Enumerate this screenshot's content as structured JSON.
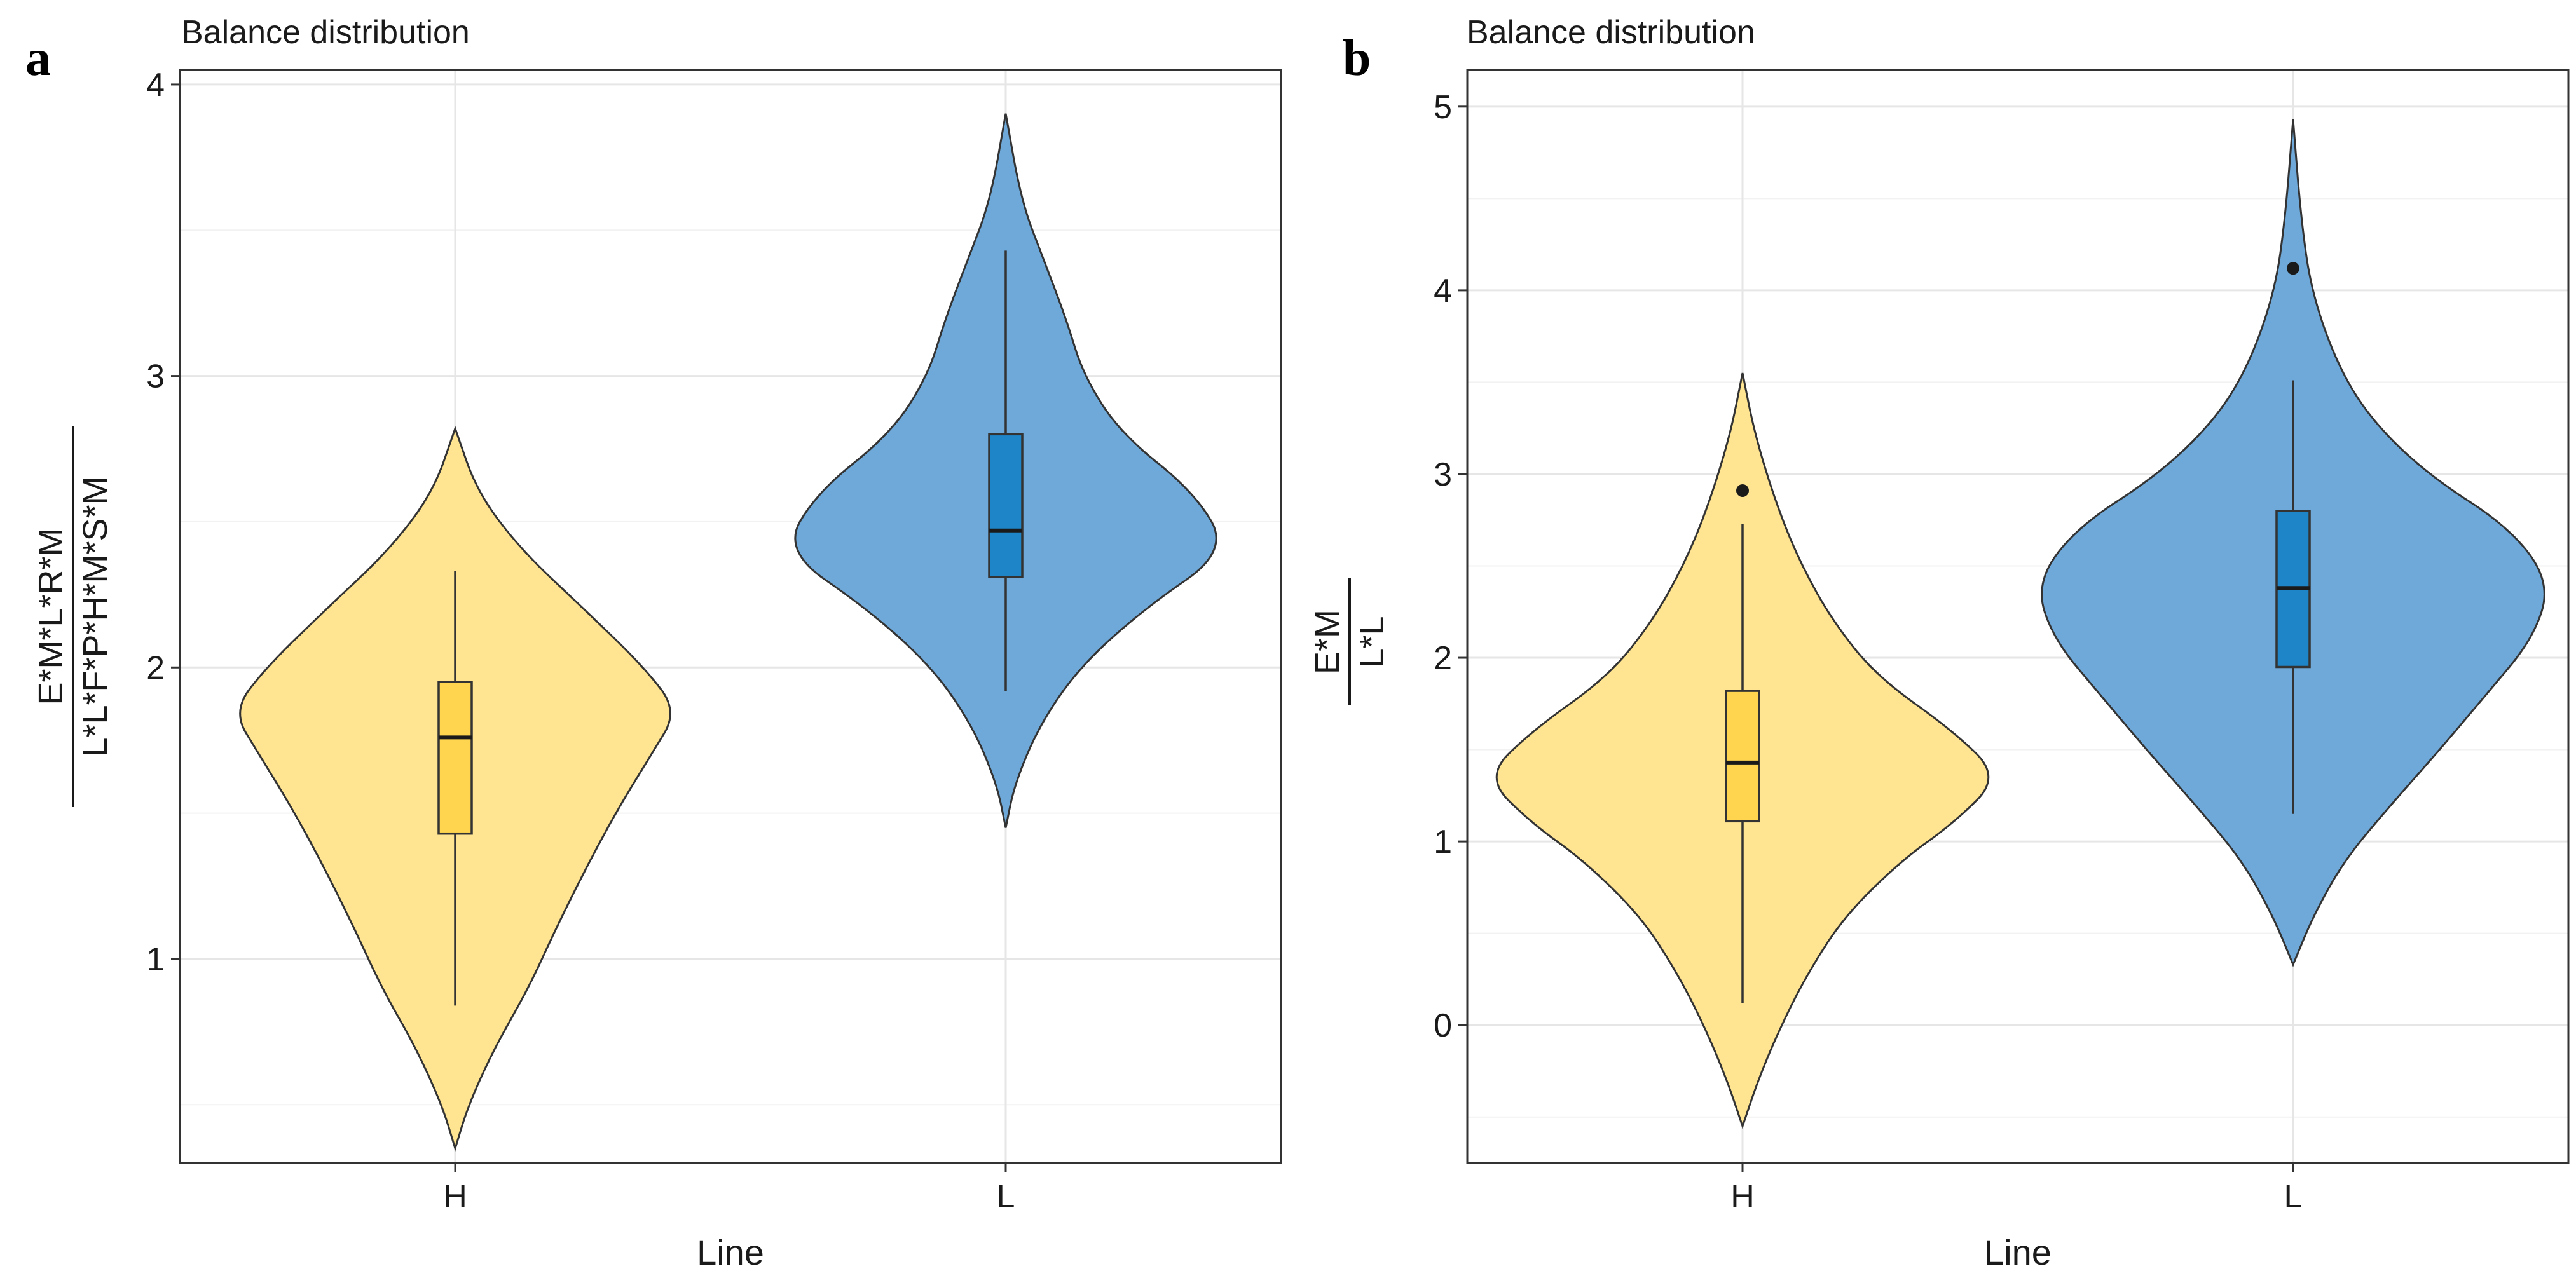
{
  "chart_data": [
    {
      "panel_label": "a",
      "type": "violin",
      "title": "Balance distribution",
      "xlabel": "Line",
      "ylabel": {
        "numerator": "E*M*L*R*M",
        "denominator": "L*L*F*P*H*M*S*M"
      },
      "categories": [
        "H",
        "L"
      ],
      "ylim": [
        0.3,
        4.05
      ],
      "yticks": [
        1,
        2,
        3,
        4
      ],
      "ytick_labels": [
        "1",
        "2",
        "3",
        "4"
      ],
      "grid": true,
      "colors": {
        "H": "#ffe491",
        "L": "#6fa9d9",
        "H_box": "#ffd54f",
        "L_box": "#1e85c8"
      },
      "series": [
        {
          "name": "H",
          "violin_profile": [
            [
              0.35,
              0.0
            ],
            [
              0.5,
              0.06
            ],
            [
              0.7,
              0.18
            ],
            [
              0.9,
              0.33
            ],
            [
              1.1,
              0.45
            ],
            [
              1.3,
              0.58
            ],
            [
              1.5,
              0.72
            ],
            [
              1.7,
              0.88
            ],
            [
              1.85,
              1.0
            ],
            [
              2.0,
              0.85
            ],
            [
              2.2,
              0.58
            ],
            [
              2.4,
              0.3
            ],
            [
              2.6,
              0.1
            ],
            [
              2.82,
              0.0
            ]
          ],
          "box": {
            "q1": 1.43,
            "median": 1.76,
            "q3": 1.95,
            "whisker_low": 0.84,
            "whisker_high": 2.33
          },
          "outliers": []
        },
        {
          "name": "L",
          "violin_profile": [
            [
              1.45,
              0.0
            ],
            [
              1.6,
              0.04
            ],
            [
              1.8,
              0.15
            ],
            [
              2.0,
              0.33
            ],
            [
              2.2,
              0.62
            ],
            [
              2.4,
              1.0
            ],
            [
              2.6,
              0.85
            ],
            [
              2.8,
              0.52
            ],
            [
              3.0,
              0.35
            ],
            [
              3.2,
              0.27
            ],
            [
              3.4,
              0.17
            ],
            [
              3.6,
              0.07
            ],
            [
              3.9,
              0.0
            ]
          ],
          "box": {
            "q1": 2.31,
            "median": 2.47,
            "q3": 2.8,
            "whisker_low": 1.92,
            "whisker_high": 3.43
          },
          "outliers": []
        }
      ]
    },
    {
      "panel_label": "b",
      "type": "violin",
      "title": "Balance distribution",
      "xlabel": "Line",
      "ylabel": {
        "numerator": "E*M",
        "denominator": "L*L"
      },
      "categories": [
        "H",
        "L"
      ],
      "ylim": [
        -0.75,
        5.2
      ],
      "yticks": [
        0,
        1,
        2,
        3,
        4,
        5
      ],
      "ytick_labels": [
        "0",
        "1",
        "2",
        "3",
        "4",
        "5"
      ],
      "grid": true,
      "colors": {
        "H": "#ffe491",
        "L": "#6fa9d9",
        "H_box": "#ffd54f",
        "L_box": "#1e85c8"
      },
      "series": [
        {
          "name": "H",
          "violin_profile": [
            [
              -0.55,
              0.0
            ],
            [
              -0.3,
              0.06
            ],
            [
              0.0,
              0.15
            ],
            [
              0.3,
              0.26
            ],
            [
              0.6,
              0.4
            ],
            [
              0.9,
              0.62
            ],
            [
              1.1,
              0.82
            ],
            [
              1.35,
              1.0
            ],
            [
              1.6,
              0.82
            ],
            [
              1.9,
              0.52
            ],
            [
              2.2,
              0.35
            ],
            [
              2.5,
              0.23
            ],
            [
              2.8,
              0.14
            ],
            [
              3.2,
              0.05
            ],
            [
              3.55,
              0.0
            ]
          ],
          "box": {
            "q1": 1.11,
            "median": 1.43,
            "q3": 1.82,
            "whisker_low": 0.12,
            "whisker_high": 2.73
          },
          "outliers": [
            2.91
          ]
        },
        {
          "name": "L",
          "violin_profile": [
            [
              0.33,
              0.0
            ],
            [
              0.6,
              0.08
            ],
            [
              0.9,
              0.2
            ],
            [
              1.2,
              0.38
            ],
            [
              1.5,
              0.57
            ],
            [
              1.8,
              0.75
            ],
            [
              2.1,
              0.93
            ],
            [
              2.4,
              1.0
            ],
            [
              2.7,
              0.85
            ],
            [
              3.0,
              0.52
            ],
            [
              3.3,
              0.3
            ],
            [
              3.6,
              0.17
            ],
            [
              4.0,
              0.07
            ],
            [
              4.4,
              0.03
            ],
            [
              4.93,
              0.0
            ]
          ],
          "box": {
            "q1": 1.95,
            "median": 2.38,
            "q3": 2.8,
            "whisker_low": 1.15,
            "whisker_high": 3.51
          },
          "outliers": [
            4.12
          ]
        }
      ]
    }
  ]
}
